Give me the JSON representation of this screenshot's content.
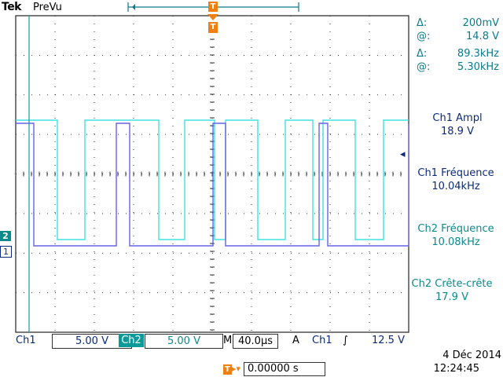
{
  "header": {
    "brand": "Tek",
    "mode": "PreVu"
  },
  "trigger": {
    "marker": "T",
    "level_marker": "◂"
  },
  "channels": {
    "ch1": {
      "marker": "1",
      "color": "#6060e0"
    },
    "ch2": {
      "marker": "2",
      "color": "#40e0e0"
    }
  },
  "cursor_readout": {
    "voltage_delta_label": "Δ:",
    "voltage_delta": "200mV",
    "voltage_at_label": "@:",
    "voltage_at": "14.8 V",
    "freq_delta_label": "Δ:",
    "freq_delta": "89.3kHz",
    "freq_at_label": "@:",
    "freq_at": "5.30kHz"
  },
  "measurements": [
    {
      "name": "Ch1 Ampl",
      "value": "18.9 V"
    },
    {
      "name": "Ch1 Fréquence",
      "value": "10.04kHz"
    },
    {
      "name": "Ch2 Fréquence",
      "value": "10.08kHz"
    },
    {
      "name": "Ch2 Crête-crête",
      "value": "17.9 V"
    }
  ],
  "bottom_bar": {
    "ch1_label": "Ch1",
    "ch1_scale": "5.00 V",
    "ch2_label": "Ch2",
    "ch2_scale": "5.00 V",
    "timebase_label": "M",
    "timebase": "40.0µs",
    "trig_label": "A",
    "trig_source": "Ch1",
    "trig_slope": "∫",
    "trig_level": "12.5 V"
  },
  "trigger_position": {
    "value": "0.00000 s"
  },
  "datetime": {
    "date": "4 Déc  2014",
    "time": "12:24:45"
  },
  "colors": {
    "grid": "#222222",
    "cyan_text": "#0a8a8a",
    "navy_text": "#0b2a7a",
    "trigger_orange": "#f08010"
  }
}
